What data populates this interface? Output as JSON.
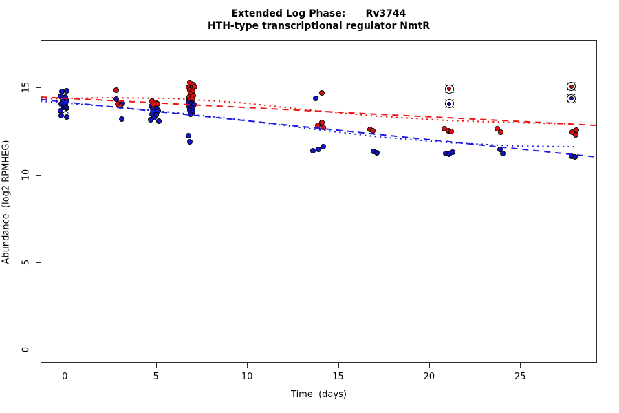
{
  "title": {
    "line1": "Extended Log Phase:      Rv3744",
    "line2": "HTH-type transcriptional regulator NmtR"
  },
  "axes": {
    "x": {
      "label": "Time  (days)",
      "ticks": [
        0,
        5,
        10,
        15,
        20,
        25
      ],
      "range": [
        -1.4,
        29.3
      ]
    },
    "y": {
      "label": "Abundance  (log2 RPMHEG)",
      "ticks": [
        0,
        5,
        10,
        15
      ],
      "range": [
        -0.75,
        17.7
      ]
    }
  },
  "colors": {
    "point_red": "#dd1111",
    "point_blue": "#1414c8",
    "line_red": "#ee1111",
    "line_blue": "#1a1ae0",
    "marker_outline": "#000000",
    "axis": "#2b2b2b"
  },
  "chart_data": {
    "type": "scatter",
    "title": "Extended Log Phase: Rv3744 — HTH-type transcriptional regulator NmtR",
    "xlabel": "Time (days)",
    "ylabel": "Abundance (log2 RPMHEG)",
    "xlim": [
      -1.4,
      29.3
    ],
    "ylim": [
      -0.75,
      17.7
    ],
    "grid": false,
    "legend": false,
    "series": [
      {
        "name": "blue-points",
        "marker": "filled-circle",
        "color": "#1414c8",
        "points": [
          [
            -0.16,
            14.76
          ],
          [
            0.1,
            14.8
          ],
          [
            -0.24,
            14.49
          ],
          [
            0.03,
            14.45
          ],
          [
            -0.12,
            14.25
          ],
          [
            0.1,
            14.21
          ],
          [
            -0.2,
            14.06
          ],
          [
            0.03,
            14.02
          ],
          [
            -0.09,
            13.86
          ],
          [
            0.1,
            13.82
          ],
          [
            -0.24,
            13.66
          ],
          [
            -0.2,
            13.39
          ],
          [
            0.1,
            13.31
          ],
          [
            2.82,
            14.33
          ],
          [
            3.16,
            14.09
          ],
          [
            3.12,
            13.19
          ],
          [
            4.75,
            13.94
          ],
          [
            4.97,
            13.9
          ],
          [
            4.82,
            13.78
          ],
          [
            5.05,
            13.78
          ],
          [
            4.9,
            13.62
          ],
          [
            5.12,
            13.66
          ],
          [
            4.79,
            13.46
          ],
          [
            5.01,
            13.43
          ],
          [
            4.9,
            13.27
          ],
          [
            4.71,
            13.15
          ],
          [
            5.16,
            13.07
          ],
          [
            6.82,
            14.33
          ],
          [
            6.97,
            14.25
          ],
          [
            6.79,
            14.13
          ],
          [
            6.94,
            14.06
          ],
          [
            7.09,
            14.02
          ],
          [
            6.82,
            13.9
          ],
          [
            6.97,
            13.82
          ],
          [
            6.86,
            13.7
          ],
          [
            7.01,
            13.62
          ],
          [
            6.9,
            13.46
          ],
          [
            6.79,
            12.24
          ],
          [
            6.86,
            11.89
          ],
          [
            13.77,
            14.37
          ],
          [
            13.62,
            11.38
          ],
          [
            13.92,
            11.46
          ],
          [
            14.18,
            11.61
          ],
          [
            16.94,
            11.34
          ],
          [
            17.13,
            11.26
          ],
          [
            20.91,
            11.22
          ],
          [
            21.1,
            11.18
          ],
          [
            21.29,
            11.3
          ],
          [
            23.89,
            11.46
          ],
          [
            24.04,
            11.22
          ],
          [
            27.82,
            11.06
          ],
          [
            28.01,
            11.02
          ]
        ]
      },
      {
        "name": "red-points",
        "marker": "filled-circle",
        "color": "#dd1111",
        "points": [
          [
            2.82,
            14.84
          ],
          [
            2.9,
            14.06
          ],
          [
            3.05,
            13.94
          ],
          [
            4.79,
            14.21
          ],
          [
            4.97,
            14.13
          ],
          [
            4.86,
            14.02
          ],
          [
            5.08,
            14.06
          ],
          [
            6.86,
            15.28
          ],
          [
            7.05,
            15.16
          ],
          [
            6.79,
            15.0
          ],
          [
            6.97,
            14.96
          ],
          [
            7.13,
            15.04
          ],
          [
            6.86,
            14.84
          ],
          [
            7.01,
            14.76
          ],
          [
            6.9,
            14.65
          ],
          [
            7.05,
            14.53
          ],
          [
            6.82,
            14.45
          ],
          [
            6.97,
            14.37
          ],
          [
            14.11,
            14.69
          ],
          [
            13.88,
            12.83
          ],
          [
            14.11,
            12.99
          ],
          [
            14.18,
            12.72
          ],
          [
            16.76,
            12.6
          ],
          [
            16.91,
            12.52
          ],
          [
            20.83,
            12.64
          ],
          [
            21.06,
            12.52
          ],
          [
            21.21,
            12.48
          ],
          [
            23.74,
            12.64
          ],
          [
            23.93,
            12.44
          ],
          [
            27.86,
            12.44
          ],
          [
            28.09,
            12.56
          ],
          [
            28.05,
            12.28
          ]
        ]
      },
      {
        "name": "red-circled-points",
        "marker": "circle-cross",
        "color": "#dd1111",
        "points": [
          [
            21.1,
            14.92
          ],
          [
            27.82,
            15.04
          ]
        ]
      },
      {
        "name": "blue-circled-points",
        "marker": "circle-cross",
        "color": "#1414c8",
        "points": [
          [
            21.1,
            14.06
          ],
          [
            27.82,
            14.37
          ]
        ]
      },
      {
        "name": "cross-marks",
        "marker": "x",
        "color": "#000000",
        "points": [
          [
            -0.05,
            13.9
          ],
          [
            0.06,
            13.66
          ]
        ]
      }
    ],
    "lines": [
      {
        "name": "red-dashed-fit",
        "style": "dashed",
        "color": "#ee1111",
        "points": [
          [
            -1.33,
            14.45
          ],
          [
            29.22,
            12.83
          ]
        ]
      },
      {
        "name": "red-dotted-fit",
        "style": "dotted",
        "color": "#ee1111",
        "points": [
          [
            -1.33,
            14.33
          ],
          [
            2.1,
            14.41
          ],
          [
            5.88,
            14.37
          ],
          [
            9.66,
            14.13
          ],
          [
            13.43,
            13.7
          ],
          [
            17.21,
            13.35
          ],
          [
            20.98,
            13.11
          ],
          [
            24.76,
            12.99
          ],
          [
            27.97,
            12.91
          ]
        ]
      },
      {
        "name": "blue-dashed-fit",
        "style": "dashed",
        "color": "#1a1ae0",
        "points": [
          [
            -1.33,
            14.31
          ],
          [
            29.22,
            11.02
          ]
        ]
      },
      {
        "name": "blue-dotted-fit",
        "style": "dotted",
        "color": "#1a1ae0",
        "points": [
          [
            -1.33,
            14.21
          ],
          [
            2.1,
            13.94
          ],
          [
            5.88,
            13.58
          ],
          [
            9.66,
            13.15
          ],
          [
            13.43,
            12.64
          ],
          [
            17.21,
            12.17
          ],
          [
            20.98,
            11.85
          ],
          [
            24.76,
            11.65
          ],
          [
            27.97,
            11.61
          ]
        ]
      }
    ]
  }
}
